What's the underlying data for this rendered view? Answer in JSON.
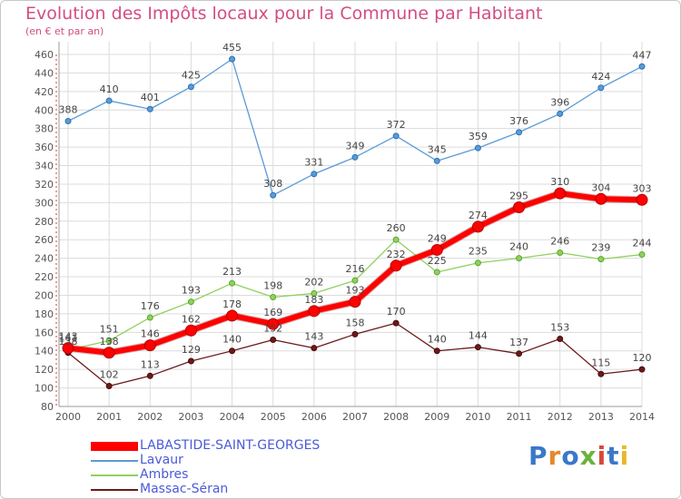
{
  "header": {
    "title": "Evolution des Impôts locaux pour la Commune par Habitant",
    "subtitle": "(en € et par an)"
  },
  "logo_text": "Proxiti",
  "colors": {
    "title": "#d34d82",
    "grid": "#dcdcdc",
    "axis": "#555555",
    "legend_text": "#4a5ad8"
  },
  "chart_data": {
    "type": "line",
    "x": [
      "2000",
      "2001",
      "2002",
      "2003",
      "2004",
      "2005",
      "2006",
      "2007",
      "2008",
      "2009",
      "2010",
      "2011",
      "2012",
      "2013",
      "2014"
    ],
    "ylim": [
      80,
      460
    ],
    "yticks": [
      80,
      100,
      120,
      140,
      160,
      180,
      200,
      220,
      240,
      260,
      280,
      300,
      320,
      340,
      360,
      380,
      400,
      420,
      440,
      460
    ],
    "grid": true,
    "legend_position": "bottom-left",
    "series": [
      {
        "name": "LABASTIDE-SAINT-GEORGES",
        "color": "#ff0000",
        "values": [
          143,
          138,
          146,
          162,
          178,
          169,
          183,
          193,
          232,
          249,
          274,
          295,
          310,
          304,
          303
        ]
      },
      {
        "name": "Lavaur",
        "color": "#5b9bd5",
        "values": [
          388,
          410,
          401,
          425,
          455,
          308,
          331,
          349,
          372,
          345,
          359,
          376,
          396,
          424,
          447
        ]
      },
      {
        "name": "Ambres",
        "color": "#90d060",
        "values": [
          141,
          151,
          176,
          193,
          213,
          198,
          202,
          216,
          260,
          225,
          235,
          240,
          246,
          239,
          244
        ]
      },
      {
        "name": "Massac-Séran",
        "color": "#6b1a1a",
        "values": [
          138,
          102,
          113,
          129,
          140,
          152,
          143,
          158,
          170,
          140,
          144,
          137,
          153,
          115,
          120
        ]
      }
    ]
  }
}
